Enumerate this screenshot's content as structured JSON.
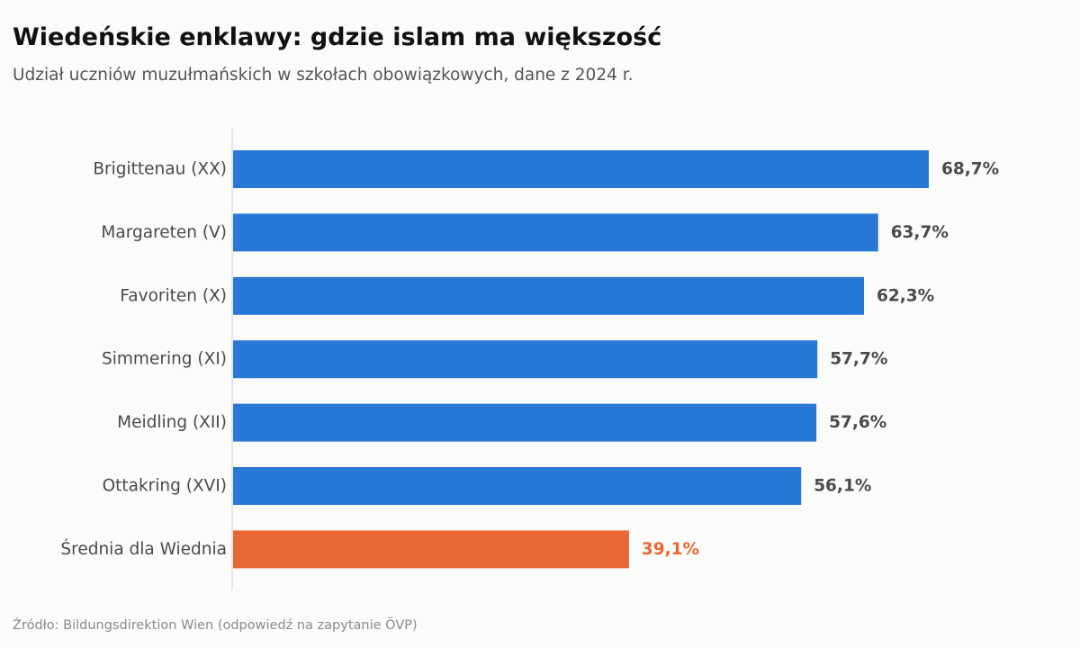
{
  "title": "Wiedeńskie enklawy: gdzie islam ma większość",
  "subtitle": "Udział uczniów muzułmańskich w szkołach obowiązkowych, dane z 2024 r.",
  "source": "Źródło: Bildungsdirektion Wien (odpowiedź na zapytanie ÖVP)",
  "colors": {
    "primary": "#2878d6",
    "highlight": "#e96735",
    "label_text": "#4a4a4a",
    "axis_line": "#d0d0d0"
  },
  "chart_data": {
    "type": "bar",
    "orientation": "horizontal",
    "categories": [
      "Brigittenau (XX)",
      "Margareten (V)",
      "Favoriten (X)",
      "Simmering (XI)",
      "Meidling (XII)",
      "Ottakring (XVI)",
      "Średnia dla Wiednia"
    ],
    "values": [
      68.7,
      63.7,
      62.3,
      57.7,
      57.6,
      56.1,
      39.1
    ],
    "value_labels": [
      "68,7%",
      "63,7%",
      "62,3%",
      "57,7%",
      "57,6%",
      "56,1%",
      "39,1%"
    ],
    "highlight_categories": [
      "Średnia dla Wiednia"
    ],
    "xlim": [
      0,
      100
    ],
    "grid": false,
    "legend": "none"
  }
}
